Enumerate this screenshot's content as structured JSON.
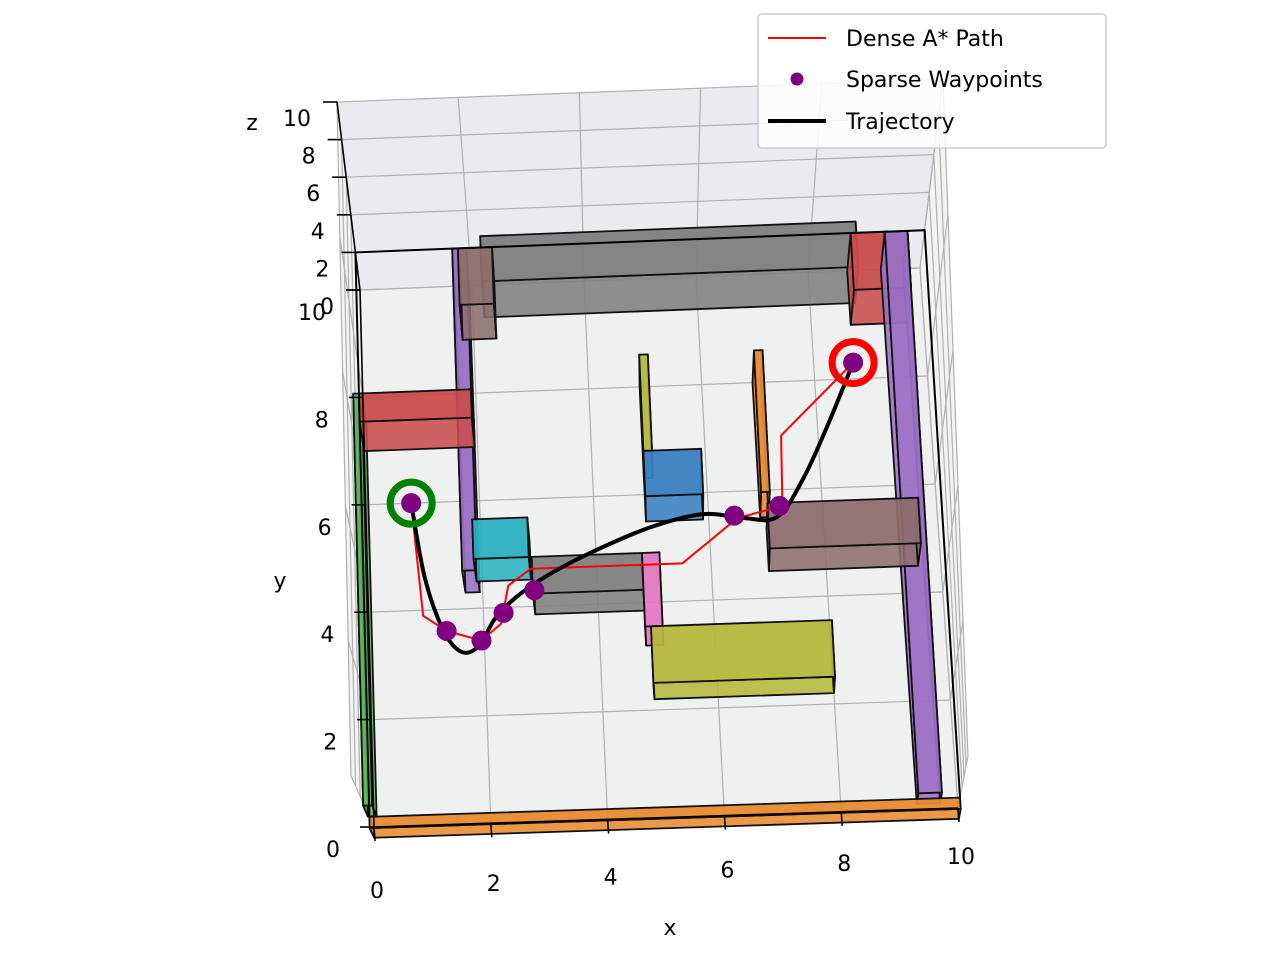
{
  "chart_data": {
    "type": "line",
    "projection": "3d",
    "xlabel": "x",
    "ylabel": "y",
    "zlabel": "z",
    "xlim": [
      0,
      10
    ],
    "ylim": [
      0,
      10
    ],
    "zlim": [
      0,
      10
    ],
    "xticks": [
      "0",
      "2",
      "4",
      "6",
      "8",
      "10"
    ],
    "yticks": [
      "0",
      "2",
      "4",
      "6",
      "8",
      "10"
    ],
    "zticks": [
      "0",
      "2",
      "4",
      "6",
      "8",
      "10"
    ],
    "grid": true,
    "legend_position": "top-right",
    "legend": [
      {
        "label": "Dense A* Path",
        "style": "line",
        "color": "#ff0000"
      },
      {
        "label": "Sparse Waypoints",
        "style": "marker",
        "color": "#800080"
      },
      {
        "label": "Trajectory",
        "style": "line",
        "color": "#000000"
      }
    ],
    "start": {
      "x": 0.8,
      "y": 6.0,
      "color": "#008000"
    },
    "goal": {
      "x": 8.7,
      "y": 8.3,
      "color": "#ff0000"
    },
    "series": [
      {
        "name": "Dense A* Path",
        "color": "#ff0000",
        "points": [
          [
            0.8,
            6.0
          ],
          [
            0.95,
            3.9
          ],
          [
            1.35,
            3.6
          ],
          [
            1.95,
            3.4
          ],
          [
            2.3,
            3.7
          ],
          [
            2.45,
            4.4
          ],
          [
            2.85,
            4.7
          ],
          [
            5.5,
            4.7
          ],
          [
            6.5,
            5.5
          ],
          [
            7.3,
            5.7
          ],
          [
            7.35,
            7.0
          ],
          [
            8.7,
            8.3
          ]
        ]
      },
      {
        "name": "Sparse Waypoints",
        "color": "#800080",
        "points": [
          [
            0.8,
            6.0
          ],
          [
            1.35,
            3.6
          ],
          [
            1.95,
            3.4
          ],
          [
            2.35,
            3.9
          ],
          [
            2.9,
            4.3
          ],
          [
            6.45,
            5.55
          ],
          [
            7.25,
            5.7
          ],
          [
            8.7,
            8.3
          ]
        ]
      },
      {
        "name": "Trajectory",
        "color": "#000000",
        "points": [
          [
            0.8,
            6.0
          ],
          [
            1.0,
            4.6
          ],
          [
            1.3,
            3.6
          ],
          [
            1.6,
            3.2
          ],
          [
            1.9,
            3.3
          ],
          [
            2.2,
            3.8
          ],
          [
            2.6,
            4.2
          ],
          [
            3.2,
            4.6
          ],
          [
            4.0,
            5.0
          ],
          [
            5.0,
            5.4
          ],
          [
            5.9,
            5.6
          ],
          [
            6.6,
            5.5
          ],
          [
            7.2,
            5.5
          ],
          [
            7.7,
            6.2
          ],
          [
            8.2,
            7.2
          ],
          [
            8.7,
            8.3
          ]
        ]
      }
    ],
    "obstacles": [
      {
        "xmin": 0.0,
        "xmax": 10.0,
        "ymin": -0.2,
        "ymax": 0.0,
        "zmax": 2,
        "color": "#e88a2e"
      },
      {
        "xmin": -0.1,
        "xmax": 0.05,
        "ymin": 0.2,
        "ymax": 7.5,
        "zmax": 2,
        "color": "#5cb85c"
      },
      {
        "xmin": 0.0,
        "xmax": 1.95,
        "ymin": 7.0,
        "ymax": 7.5,
        "zmax": 2,
        "color": "#c94c4c"
      },
      {
        "xmin": 1.7,
        "xmax": 1.95,
        "ymin": 4.3,
        "ymax": 10.0,
        "zmax": 2,
        "color": "#9a6fc4"
      },
      {
        "xmin": 1.8,
        "xmax": 2.4,
        "ymin": 9.0,
        "ymax": 10.0,
        "zmax": 2,
        "color": "#8d6e6e"
      },
      {
        "xmin": 2.2,
        "xmax": 8.8,
        "ymin": 9.4,
        "ymax": 10.2,
        "zmax": 2,
        "color": "#808080"
      },
      {
        "xmin": 8.7,
        "xmax": 9.7,
        "ymin": 9.0,
        "ymax": 10.0,
        "zmax": 2,
        "color": "#c94c4c"
      },
      {
        "xmin": 9.3,
        "xmax": 9.7,
        "ymin": 0.1,
        "ymax": 10.0,
        "zmax": 2,
        "color": "#9a6fc4"
      },
      {
        "xmin": 1.9,
        "xmax": 2.85,
        "ymin": 4.5,
        "ymax": 5.2,
        "zmax": 2,
        "color": "#2bb0c0"
      },
      {
        "xmin": 2.9,
        "xmax": 4.8,
        "ymin": 3.85,
        "ymax": 4.5,
        "zmax": 2,
        "color": "#808080"
      },
      {
        "xmin": 4.8,
        "xmax": 5.1,
        "ymin": 3.2,
        "ymax": 4.5,
        "zmax": 2,
        "color": "#e377c2"
      },
      {
        "xmin": 4.9,
        "xmax": 8.0,
        "ymin": 2.2,
        "ymax": 3.2,
        "zmax": 2,
        "color": "#b5b83a"
      },
      {
        "xmin": 4.9,
        "xmax": 5.9,
        "ymin": 5.5,
        "ymax": 6.3,
        "zmax": 2,
        "color": "#3a7fc0"
      },
      {
        "xmin": 4.9,
        "xmax": 5.05,
        "ymin": 6.3,
        "ymax": 8.0,
        "zmax": 2,
        "color": "#b5b83a"
      },
      {
        "xmin": 6.9,
        "xmax": 7.05,
        "ymin": 5.5,
        "ymax": 8.0,
        "zmax": 2,
        "color": "#e88a2e"
      },
      {
        "xmin": 7.0,
        "xmax": 9.6,
        "ymin": 4.5,
        "ymax": 5.3,
        "zmax": 2,
        "color": "#8d6e6e"
      }
    ]
  }
}
